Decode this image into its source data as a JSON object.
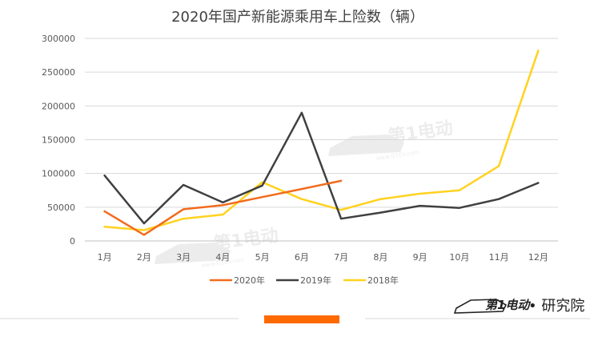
{
  "chart_data": {
    "type": "line",
    "title": "2020年国产新能源乘用车上险数（辆）",
    "categories": [
      "1月",
      "2月",
      "3月",
      "4月",
      "5月",
      "6月",
      "7月",
      "8月",
      "9月",
      "10月",
      "11月",
      "12月"
    ],
    "ylim": [
      0,
      300000
    ],
    "yticks": [
      0,
      50000,
      100000,
      150000,
      200000,
      250000,
      300000
    ],
    "ytick_labels": [
      "0",
      "50000",
      "100000",
      "150000",
      "200000",
      "250000",
      "300000"
    ],
    "grid": true,
    "legend_position": "bottom",
    "series": [
      {
        "name": "2020年",
        "color": "#F26B1D",
        "values": [
          44000,
          9000,
          47000,
          53000,
          65000,
          77000,
          89000,
          null,
          null,
          null,
          null,
          null
        ]
      },
      {
        "name": "2019年",
        "color": "#404040",
        "values": [
          97000,
          26000,
          83000,
          57000,
          82000,
          190000,
          33000,
          42000,
          52000,
          49000,
          62000,
          86000
        ]
      },
      {
        "name": "2018年",
        "color": "#FFD21F",
        "values": [
          21000,
          16000,
          33000,
          39000,
          87000,
          62000,
          46000,
          62000,
          70000,
          75000,
          111000,
          282000
        ]
      }
    ]
  },
  "watermark": {
    "brand_text": "第1电动",
    "site_text": "www.D1EV.com",
    "footer_logo_text": "第1电动",
    "footer_suffix_text": "• 研究院"
  },
  "colors": {
    "grid": "#D9D9D9",
    "axis": "#BFBFBF",
    "footer_bar_accent": "#FF6A00",
    "footer_line": "#E6E6E6"
  }
}
